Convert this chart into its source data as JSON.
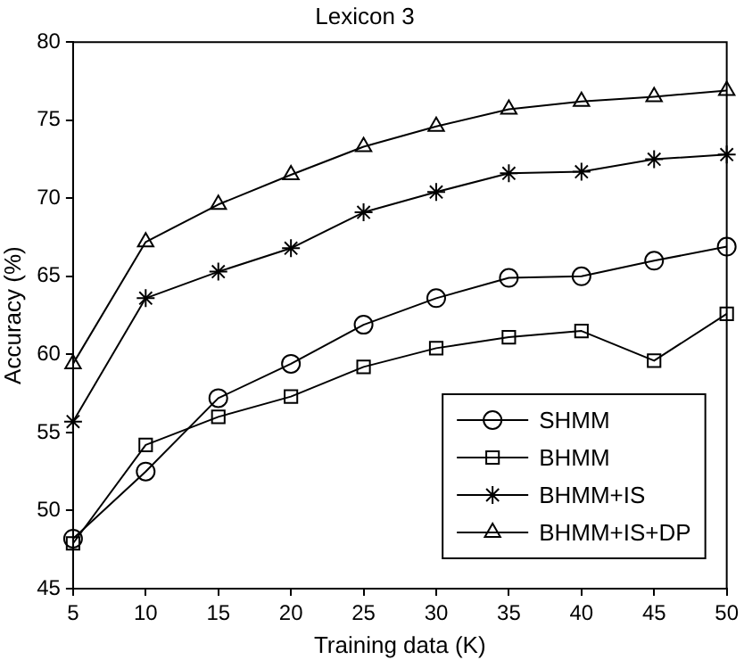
{
  "chart_data": {
    "type": "line",
    "title": "Lexicon 3",
    "xlabel": "Training data (K)",
    "ylabel": "Accuracy (%)",
    "x": [
      5,
      10,
      15,
      20,
      25,
      30,
      35,
      40,
      45,
      50
    ],
    "xlim": [
      5,
      50
    ],
    "xticks": [
      5,
      10,
      15,
      20,
      25,
      30,
      35,
      40,
      45,
      50
    ],
    "ylim": [
      45,
      80
    ],
    "yticks": [
      45,
      50,
      55,
      60,
      65,
      70,
      75,
      80
    ],
    "grid": false,
    "legend": "bottom right",
    "line_style": "solid",
    "series": [
      {
        "name": "SHMM",
        "color": "#000000",
        "marker": "circle",
        "values": [
          48.2,
          52.5,
          57.2,
          59.4,
          61.9,
          63.6,
          64.9,
          65.0,
          66.0,
          66.9
        ]
      },
      {
        "name": "BHMM",
        "color": "#000000",
        "marker": "square",
        "values": [
          47.9,
          54.2,
          56.0,
          57.3,
          59.2,
          60.4,
          61.1,
          61.5,
          59.6,
          62.6
        ]
      },
      {
        "name": "BHMM+IS",
        "color": "#000000",
        "marker": "cross",
        "values": [
          55.7,
          63.6,
          65.3,
          66.8,
          69.1,
          70.4,
          71.6,
          71.7,
          72.5,
          72.8
        ]
      },
      {
        "name": "BHMM+IS+DP",
        "color": "#000000",
        "marker": "triangle",
        "values": [
          59.4,
          67.2,
          69.6,
          71.5,
          73.3,
          74.6,
          75.7,
          76.2,
          76.5,
          76.9
        ]
      }
    ]
  }
}
